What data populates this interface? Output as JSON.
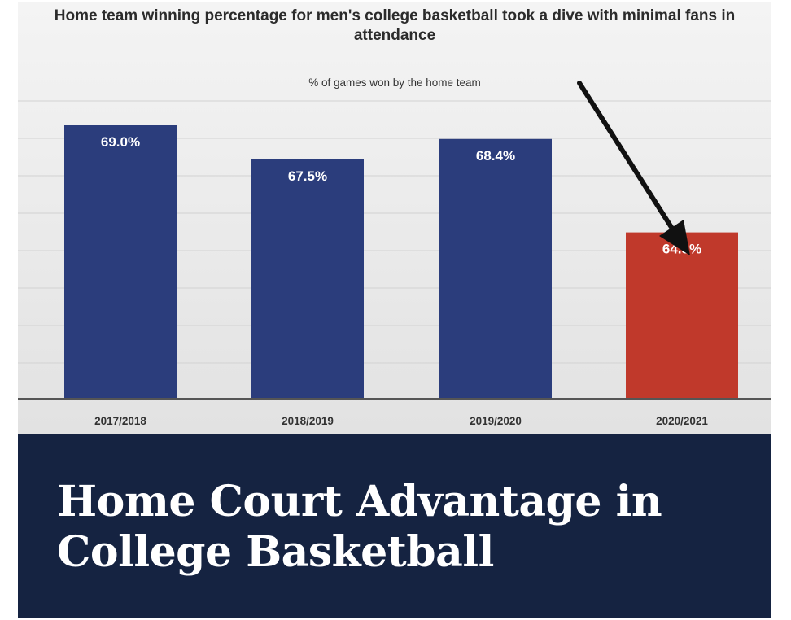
{
  "chart_data": {
    "type": "bar",
    "title": "Home team winning percentage for men's college basketball took a dive with minimal fans in attendance",
    "subtitle": "% of games won by the home team",
    "categories": [
      "2017/2018",
      "2018/2019",
      "2019/2020",
      "2020/2021"
    ],
    "values": [
      69.0,
      67.5,
      68.4,
      64.3
    ],
    "data_labels": [
      "69.0%",
      "67.5%",
      "68.4%",
      "64.3%"
    ],
    "colors": [
      "#2b3d7c",
      "#2b3d7c",
      "#2b3d7c",
      "#c0392b"
    ],
    "ylim": [
      57,
      70.5
    ],
    "grid": true,
    "legend": "none",
    "annotation": "arrow pointing to 2020/2021 bar"
  },
  "banner": {
    "title": "Home Court Advantage in College Basketball"
  },
  "colors": {
    "banner_bg": "#152341",
    "bar_blue": "#2b3d7c",
    "bar_red": "#c0392b"
  }
}
